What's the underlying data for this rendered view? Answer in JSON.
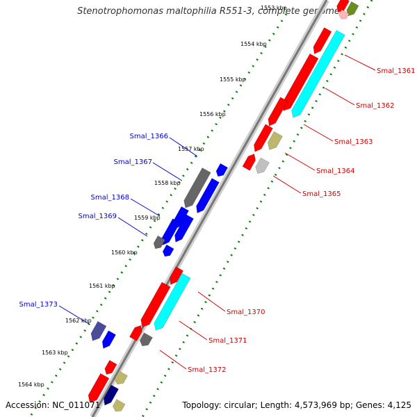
{
  "title": "Stenotrophomonas maltophilia R551-3, complete genome",
  "footer": {
    "accession": "Accession: NC_011071",
    "summary": "Topology: circular; Length: 4,573,969 bp; Genes: 4,125"
  },
  "colors": {
    "red": "#ff0000",
    "cyan": "#00ffff",
    "olive": "#bdb76b",
    "blue": "#0000ff",
    "gray": "#666666",
    "lightgray": "#c0c0c0",
    "slate": "#4b4b9b",
    "darkolive": "#6b8e23",
    "pink": "#ffb6b6",
    "navy": "#000080",
    "forward_label": "#cc0000",
    "reverse_label": "#0000cc",
    "tick_dots": "#008000"
  },
  "ticks": [
    "1553 kbp",
    "1554 kbp",
    "1555 kbp",
    "1556 kbp",
    "1557 kbp",
    "1558 kbp",
    "1559 kbp",
    "1560 kbp",
    "1561 kbp",
    "1562 kbp",
    "1563 kbp",
    "1564 kbp"
  ],
  "forward_labels": [
    "Smal_1361",
    "Smal_1362",
    "Smal_1363",
    "Smal_1364",
    "Smal_1365",
    "Smal_1370",
    "Smal_1371",
    "Smal_1372"
  ],
  "reverse_labels": [
    "Smal_1366",
    "Smal_1367",
    "Smal_1368",
    "Smal_1369",
    "Smal_1373"
  ]
}
